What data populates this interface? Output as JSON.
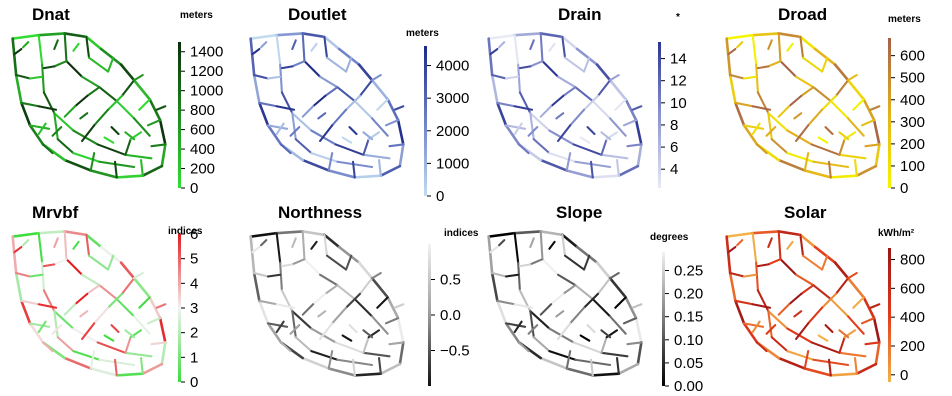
{
  "panels": [
    {
      "title": "Dnat",
      "unit": "meters",
      "colors": [
        "#33dd33",
        "#1e8a1e",
        "#0b2e0b"
      ],
      "ticks": [
        "0",
        "200",
        "400",
        "600",
        "800",
        "1000",
        "1200",
        "1400"
      ],
      "range": [
        0,
        1500
      ],
      "tickValues": [
        0,
        200,
        400,
        600,
        800,
        1000,
        1200,
        1400
      ]
    },
    {
      "title": "Doutlet",
      "unit": "meters",
      "colors": [
        "#c2dbef",
        "#6f80c8",
        "#1d2a86"
      ],
      "ticks": [
        "0",
        "1000",
        "2000",
        "3000",
        "4000"
      ],
      "range": [
        0,
        4600
      ],
      "tickValues": [
        0,
        1000,
        2000,
        3000,
        4000
      ]
    },
    {
      "title": "Drain",
      "unit": "*",
      "colors": [
        "#e8ebf5",
        "#8a92cf",
        "#2b3592"
      ],
      "ticks": [
        "4",
        "6",
        "8",
        "10",
        "12",
        "14"
      ],
      "range": [
        2.3,
        15.5
      ],
      "tickValues": [
        4,
        6,
        8,
        10,
        12,
        14
      ]
    },
    {
      "title": "Droad",
      "unit": "meters",
      "colors": [
        "#f5f500",
        "#e3b11c",
        "#a4604a"
      ],
      "ticks": [
        "0",
        "100",
        "200",
        "300",
        "400",
        "500",
        "600"
      ],
      "range": [
        0,
        680
      ],
      "tickValues": [
        0,
        100,
        200,
        300,
        400,
        500,
        600
      ]
    },
    {
      "title": "Mrvbf",
      "unit": "indices",
      "colors": [
        "#3cdc3c",
        "#f2f2f2",
        "#e41a1c"
      ],
      "ticks": [
        "0",
        "1",
        "2",
        "3",
        "4",
        "5",
        "6"
      ],
      "range": [
        0,
        6
      ],
      "tickValues": [
        0,
        1,
        2,
        3,
        4,
        5,
        6
      ]
    },
    {
      "title": "Northness",
      "unit": "indices",
      "colors": [
        "#111111",
        "#9a9a9a",
        "#f2f2f2"
      ],
      "ticks": [
        "−0.5",
        "0.0",
        "0.5"
      ],
      "range": [
        -1,
        1
      ],
      "tickValues": [
        -0.5,
        0,
        0.5
      ]
    },
    {
      "title": "Slope",
      "unit": "degrees",
      "colors": [
        "#000000",
        "#7a7a7a",
        "#f2f2f2"
      ],
      "ticks": [
        "0.00",
        "0.05",
        "0.10",
        "0.15",
        "0.20",
        "0.25"
      ],
      "range": [
        0,
        0.29
      ],
      "tickValues": [
        0,
        0.05,
        0.1,
        0.15,
        0.2,
        0.25
      ]
    },
    {
      "title": "Solar",
      "unit": "kWh/m²",
      "colors": [
        "#f2b34a",
        "#e23a1a",
        "#9a1515"
      ],
      "ticks": [
        "0",
        "200",
        "400",
        "600",
        "800"
      ],
      "range": [
        -50,
        880
      ],
      "tickValues": [
        0,
        200,
        400,
        600,
        800
      ]
    }
  ]
}
